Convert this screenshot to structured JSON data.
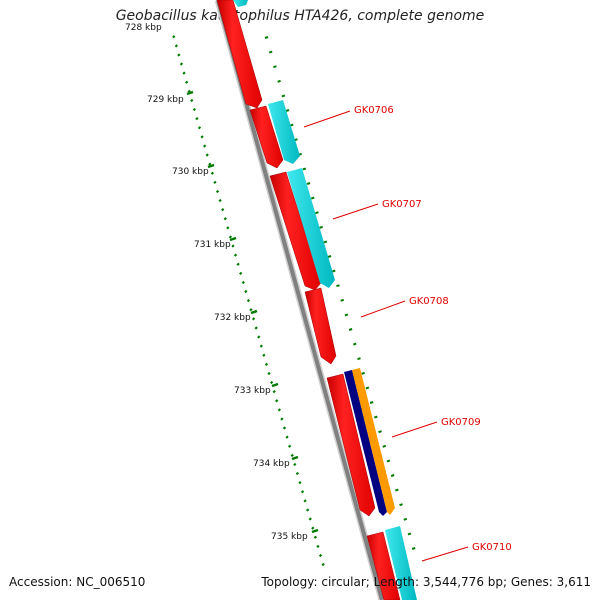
{
  "title": "Geobacillus kaustophilus HTA426, complete genome",
  "footer": {
    "accession": "Accession: NC_006510",
    "summary": "Topology: circular; Length: 3,544,776 bp; Genes: 3,611"
  },
  "scale_labels": [
    "728 kbp",
    "729 kbp",
    "730 kbp",
    "731 kbp",
    "732 kbp",
    "733 kbp",
    "734 kbp",
    "735 kbp"
  ],
  "gene_labels": [
    "GK0706",
    "GK0707",
    "GK0708",
    "GK0709",
    "GK0710"
  ],
  "colors": {
    "cds": "#ff0000",
    "feature_cyan": "#00d0d8",
    "feature_orange": "#ff9a00",
    "feature_navy": "#000080",
    "backbone": "#888888",
    "tick_green": "#007a00",
    "label_red": "#e00000"
  }
}
